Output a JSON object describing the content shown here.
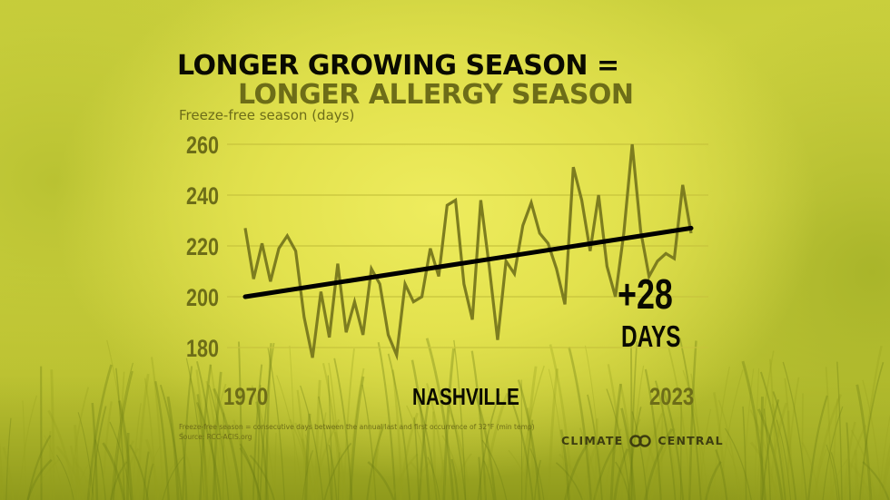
{
  "title_line1": "LONGER GROWING SEASON =",
  "title_line2": "LONGER ALLERGY SEASON",
  "footnote": "Freeze-free season = consecutive days between the annual last and first occurrence of 32°F (min temp)",
  "source": "Source: RCC-ACIS.org",
  "brand": {
    "left": "CLIMATE",
    "right": "CENTRAL",
    "logo_icon": "linked-circles-logo"
  },
  "colors": {
    "series": "#7d7d1f",
    "trend": "#000000",
    "axis_text": "#6d6d18",
    "grid": "#c7c43c"
  },
  "chart_data": {
    "type": "line",
    "title": "LONGER GROWING SEASON = LONGER ALLERGY SEASON",
    "ylabel": "Freeze-free season (days)",
    "location_label": "NASHVILLE",
    "x_tick_labels": [
      "1970",
      "2023"
    ],
    "y_ticks": [
      180,
      200,
      220,
      240,
      260
    ],
    "xlim": [
      1970,
      2023
    ],
    "ylim": [
      175,
      262
    ],
    "grid": "horizontal",
    "x": [
      1970,
      1971,
      1972,
      1973,
      1974,
      1975,
      1976,
      1977,
      1978,
      1979,
      1980,
      1981,
      1982,
      1983,
      1984,
      1985,
      1986,
      1987,
      1988,
      1989,
      1990,
      1991,
      1992,
      1993,
      1994,
      1995,
      1996,
      1997,
      1998,
      1999,
      2000,
      2001,
      2002,
      2003,
      2004,
      2005,
      2006,
      2007,
      2008,
      2009,
      2010,
      2011,
      2012,
      2013,
      2014,
      2015,
      2016,
      2017,
      2018,
      2019,
      2020,
      2021,
      2022,
      2023
    ],
    "values": [
      227,
      207,
      221,
      206,
      219,
      224,
      218,
      192,
      176,
      202,
      184,
      213,
      186,
      198,
      185,
      211,
      205,
      185,
      177,
      205,
      198,
      200,
      219,
      208,
      236,
      238,
      205,
      191,
      238,
      212,
      183,
      214,
      209,
      228,
      237,
      225,
      221,
      211,
      197,
      251,
      238,
      218,
      240,
      212,
      200,
      225,
      260,
      226,
      208,
      214,
      217,
      215,
      244,
      225
    ],
    "trend": {
      "start": [
        1970,
        200
      ],
      "end": [
        2023,
        227
      ]
    },
    "annotation": {
      "value": "+28",
      "unit": "DAYS"
    }
  }
}
